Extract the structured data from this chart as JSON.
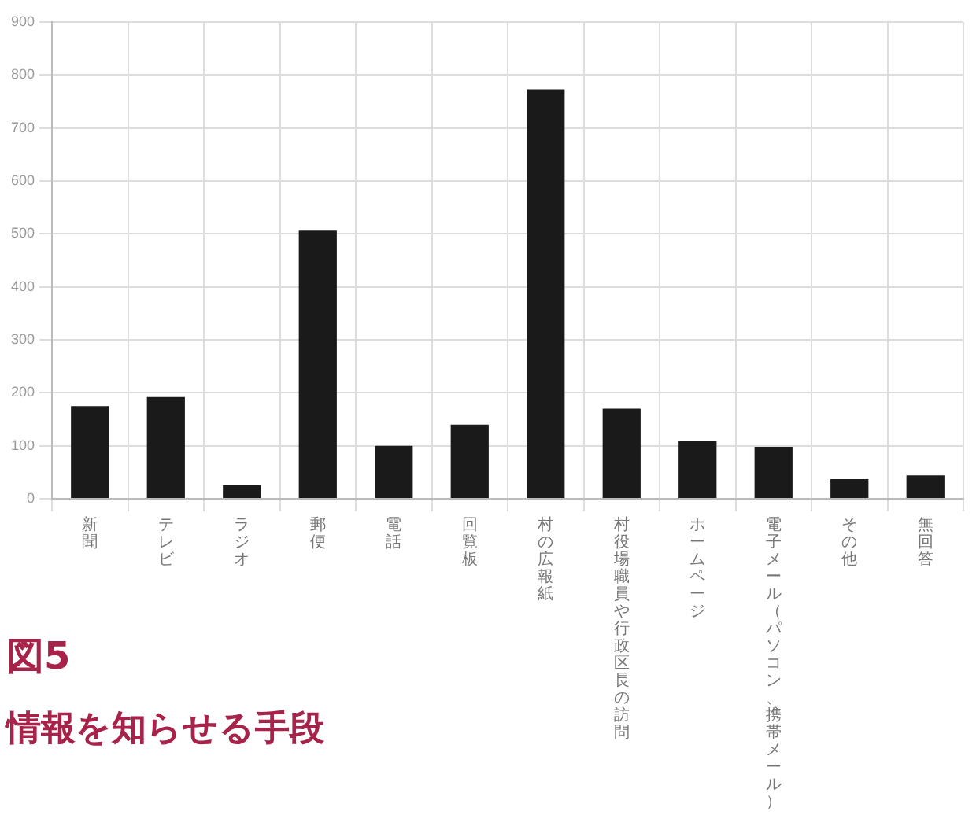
{
  "chart_data": {
    "type": "bar",
    "title": "図5",
    "subtitle": "情報を知らせる手段",
    "categories": [
      "新聞",
      "テレビ",
      "ラジオ",
      "郵便",
      "電話",
      "回覧板",
      "村の広報紙",
      "村役場職員や行政区長の訪問",
      "ホームページ",
      "電子メール（パソコン、携帯メール）",
      "その他",
      "無回答"
    ],
    "values": [
      175,
      192,
      26,
      506,
      100,
      140,
      773,
      170,
      109,
      98,
      37,
      44
    ],
    "color": "#1a1a1a",
    "ylim": [
      0,
      900
    ],
    "yticks": [
      0,
      100,
      200,
      300,
      400,
      500,
      600,
      700,
      800,
      900
    ],
    "grid": true,
    "legend": false
  }
}
